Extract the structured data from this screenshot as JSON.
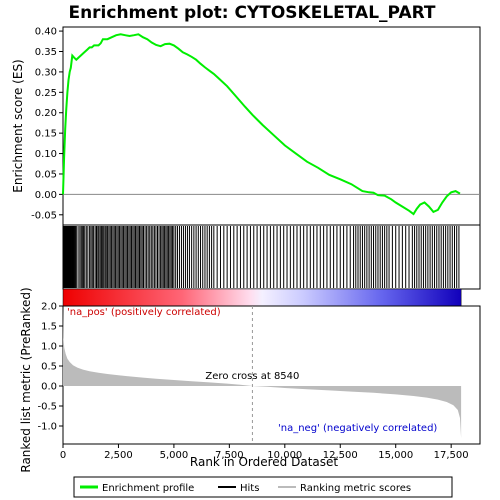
{
  "chart_data": {
    "type": "line",
    "title": "Enrichment plot: CYTOSKELETAL_PART",
    "top_panel": {
      "ylabel": "Enrichment score (ES)",
      "ylim": [
        -0.075,
        0.41
      ],
      "yticks": [
        -0.05,
        0.0,
        0.05,
        0.1,
        0.15,
        0.2,
        0.25,
        0.3,
        0.35,
        0.4
      ],
      "ytick_labels": [
        "-0.05",
        "0.00",
        "0.05",
        "0.10",
        "0.15",
        "0.20",
        "0.25",
        "0.30",
        "0.35",
        "0.40"
      ],
      "series": [
        {
          "name": "Enrichment profile",
          "color": "#00ee00",
          "x": [
            0,
            50,
            100,
            150,
            200,
            250,
            300,
            350,
            420,
            500,
            600,
            700,
            800,
            900,
            1000,
            1100,
            1200,
            1300,
            1400,
            1500,
            1600,
            1700,
            1800,
            1900,
            2000,
            2200,
            2400,
            2600,
            2800,
            3000,
            3200,
            3400,
            3600,
            3800,
            4000,
            4200,
            4400,
            4600,
            4800,
            5000,
            5200,
            5400,
            5600,
            5800,
            6000,
            6200,
            6400,
            6600,
            6800,
            7000,
            7400,
            7800,
            8200,
            8540,
            9000,
            9500,
            10000,
            10500,
            11000,
            11500,
            12000,
            12500,
            13000,
            13300,
            13500,
            13800,
            14000,
            14200,
            14500,
            14800,
            15000,
            15300,
            15600,
            15800,
            15950,
            16100,
            16300,
            16500,
            16700,
            16900,
            17100,
            17300,
            17500,
            17700,
            17900
          ],
          "y": [
            0.0,
            0.09,
            0.16,
            0.21,
            0.25,
            0.28,
            0.3,
            0.31,
            0.34,
            0.335,
            0.33,
            0.335,
            0.34,
            0.345,
            0.35,
            0.355,
            0.36,
            0.36,
            0.365,
            0.365,
            0.365,
            0.37,
            0.38,
            0.38,
            0.38,
            0.385,
            0.39,
            0.392,
            0.39,
            0.388,
            0.39,
            0.392,
            0.385,
            0.38,
            0.372,
            0.366,
            0.363,
            0.368,
            0.369,
            0.365,
            0.357,
            0.348,
            0.343,
            0.337,
            0.33,
            0.32,
            0.311,
            0.303,
            0.295,
            0.285,
            0.265,
            0.24,
            0.215,
            0.195,
            0.17,
            0.145,
            0.12,
            0.1,
            0.08,
            0.065,
            0.048,
            0.037,
            0.025,
            0.015,
            0.008,
            0.005,
            0.004,
            -0.002,
            -0.003,
            -0.012,
            -0.02,
            -0.03,
            -0.04,
            -0.048,
            -0.035,
            -0.025,
            -0.02,
            -0.03,
            -0.043,
            -0.038,
            -0.02,
            -0.005,
            0.005,
            0.008,
            0.002
          ]
        }
      ]
    },
    "hits": [
      0,
      30,
      60,
      90,
      120,
      150,
      180,
      210,
      240,
      270,
      300,
      330,
      360,
      390,
      420,
      450,
      480,
      520,
      560,
      600,
      680,
      760,
      820,
      870,
      920,
      980,
      1050,
      1120,
      1200,
      1260,
      1320,
      1380,
      1450,
      1510,
      1570,
      1620,
      1680,
      1740,
      1790,
      1840,
      1900,
      1950,
      2010,
      2070,
      2130,
      2190,
      2250,
      2310,
      2370,
      2430,
      2490,
      2550,
      2610,
      2670,
      2730,
      2790,
      2850,
      2910,
      2970,
      3030,
      3090,
      3150,
      3210,
      3270,
      3330,
      3390,
      3450,
      3510,
      3570,
      3630,
      3700,
      3770,
      3840,
      3910,
      3980,
      4050,
      4120,
      4190,
      4260,
      4330,
      4400,
      4460,
      4520,
      4580,
      4640,
      4700,
      4760,
      4820,
      4880,
      4940,
      5000,
      5080,
      5160,
      5250,
      5340,
      5430,
      5520,
      5610,
      5700,
      5800,
      5900,
      6000,
      6100,
      6200,
      6300,
      6400,
      6500,
      6600,
      6700,
      6800,
      6950,
      7100,
      7250,
      7400,
      7550,
      7700,
      7850,
      8000,
      8150,
      8300,
      8450,
      8600,
      8750,
      8900,
      9050,
      9200,
      9350,
      9500,
      9650,
      9800,
      9950,
      10100,
      10250,
      10400,
      10550,
      10700,
      10850,
      11000,
      11150,
      11300,
      11450,
      11600,
      11750,
      11900,
      12050,
      12200,
      12350,
      12500,
      12650,
      12800,
      12950,
      13100,
      13200,
      13300,
      13400,
      13500,
      13600,
      13700,
      13800,
      13900,
      14000,
      14100,
      14200,
      14300,
      14400,
      14500,
      14600,
      14700,
      14850,
      15000,
      15150,
      15300,
      15450,
      15600,
      15750,
      15850,
      15950,
      16050,
      16150,
      16250,
      16350,
      16450,
      16550,
      16650,
      16750,
      16850,
      16950,
      17050,
      17150,
      17250,
      17350,
      17450,
      17550,
      17650,
      17750,
      17850
    ],
    "bottom_panel": {
      "ylabel": "Ranked list metric (PreRanked)",
      "xlabel": "Rank in Ordered Dataset",
      "ylim": [
        -1.45,
        2.0
      ],
      "yticks": [
        -1.0,
        -0.5,
        0.0,
        0.5,
        1.0,
        1.5,
        2.0
      ],
      "ytick_labels": [
        "-1.0",
        "-0.5",
        "0.0",
        "0.5",
        "1.0",
        "1.5",
        "2.0"
      ],
      "xlim": [
        0,
        18800
      ],
      "xticks": [
        0,
        2500,
        5000,
        7500,
        10000,
        12500,
        15000,
        17500
      ],
      "xtick_labels": [
        "0",
        "2,500",
        "5,000",
        "7,500",
        "10,000",
        "12,500",
        "15,000",
        "17,500"
      ],
      "metric_x": [
        0,
        20,
        60,
        120,
        200,
        300,
        450,
        650,
        900,
        1200,
        1600,
        2000,
        2500,
        3000,
        3600,
        4200,
        5000,
        5800,
        6600,
        7400,
        8000,
        8540,
        9200,
        10000,
        11000,
        12000,
        13000,
        14000,
        15000,
        15800,
        16400,
        16900,
        17300,
        17600,
        17800,
        17900,
        17950
      ],
      "metric_y": [
        2.0,
        1.2,
        0.95,
        0.8,
        0.68,
        0.6,
        0.52,
        0.46,
        0.41,
        0.37,
        0.33,
        0.3,
        0.27,
        0.24,
        0.21,
        0.18,
        0.15,
        0.12,
        0.09,
        0.06,
        0.03,
        0.0,
        -0.02,
        -0.05,
        -0.08,
        -0.11,
        -0.14,
        -0.17,
        -0.21,
        -0.25,
        -0.29,
        -0.34,
        -0.4,
        -0.48,
        -0.6,
        -0.8,
        -1.3
      ],
      "zero_cross_label": "Zero cross at 8540",
      "zero_cross": 8540,
      "pos_label": "'na_pos' (positively correlated)",
      "neg_label": "'na_neg' (negatively correlated)"
    },
    "legend": {
      "placement": "bottom",
      "entries": [
        {
          "label": "Enrichment profile",
          "color": "#00ee00"
        },
        {
          "label": "Hits",
          "color": "#000000"
        },
        {
          "label": "Ranking metric scores",
          "color": "#bbbbbb"
        }
      ]
    },
    "colors": {
      "profile": "#00ee00",
      "pos_label": "#cc0000",
      "neg_label": "#0000cc",
      "metric_fill": "#bbbbbb"
    }
  }
}
